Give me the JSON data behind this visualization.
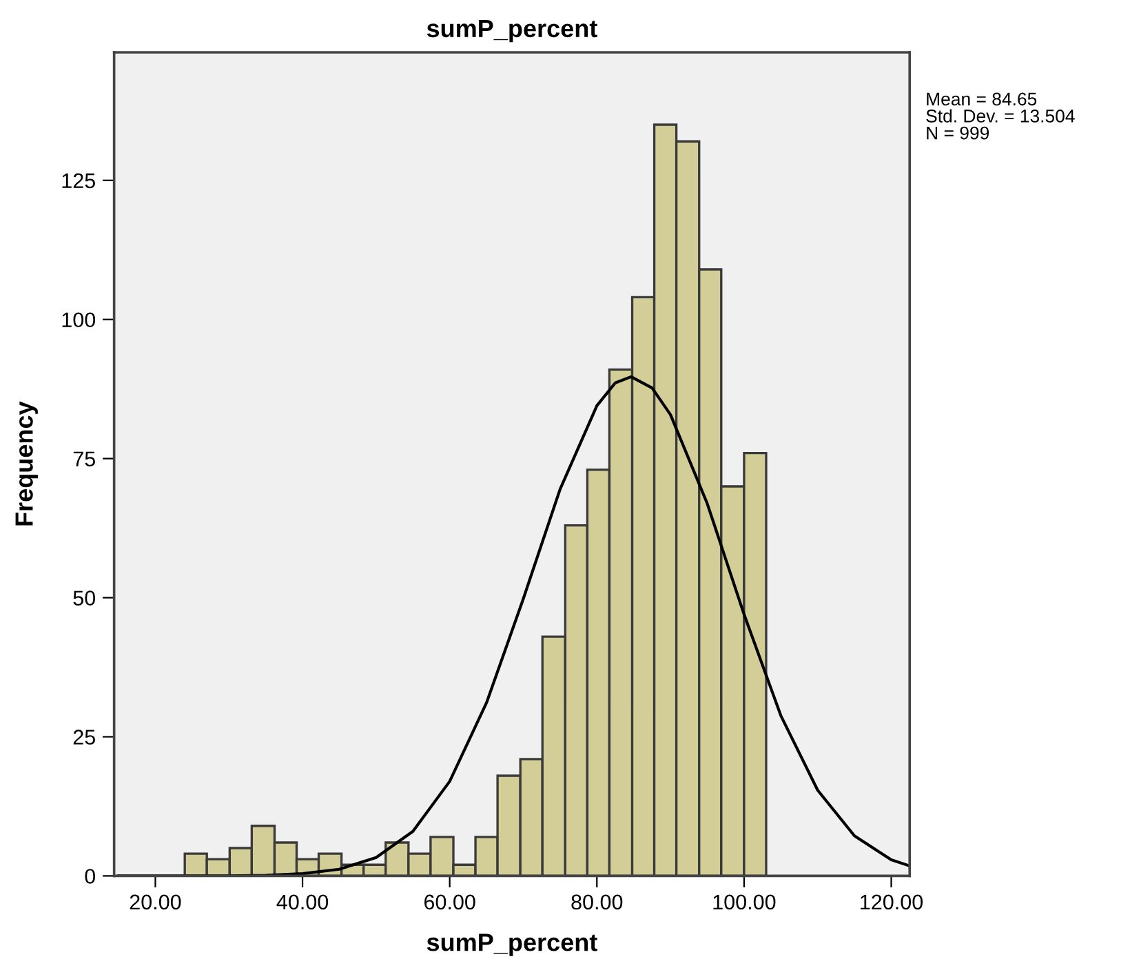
{
  "chart_data": {
    "type": "histogram",
    "title": "sumP_percent",
    "xlabel": "sumP_percent",
    "ylabel": "Frequency",
    "bins": [
      24.0,
      27.0,
      30.1,
      33.1,
      36.2,
      39.2,
      42.2,
      45.3,
      48.3,
      51.3,
      54.4,
      57.4,
      60.5,
      63.5,
      66.5,
      69.6,
      72.6,
      75.7,
      78.7,
      81.7,
      84.8,
      87.8,
      90.8,
      93.9,
      96.9,
      100.0,
      103.0
    ],
    "values": [
      4,
      3,
      5,
      9,
      6,
      3,
      4,
      2,
      2,
      6,
      4,
      7,
      2,
      7,
      18,
      21,
      43,
      63,
      73,
      91,
      104,
      135,
      132,
      109,
      70,
      76
    ],
    "color": "#d3ce97",
    "series": [
      {
        "type": "line",
        "color": "#000000",
        "x": [
          15,
          20,
          25,
          30,
          35,
          40,
          45,
          50,
          55,
          60,
          65,
          70,
          75,
          80,
          82.5,
          84.65,
          87.5,
          90,
          95,
          100,
          105,
          110,
          115,
          120,
          122.5
        ],
        "values": [
          0,
          0,
          0,
          0,
          0.1,
          0.4,
          1.2,
          3.3,
          8.0,
          17.0,
          31.1,
          49.8,
          69.5,
          84.5,
          88.6,
          89.7,
          87.7,
          82.9,
          66.9,
          47.0,
          28.8,
          15.4,
          7.2,
          2.9,
          1.8
        ]
      }
    ],
    "xlim": [
      14.4,
      122.5
    ],
    "ylim": [
      0,
      148
    ],
    "xticks": [
      {
        "value": 20,
        "label": "20.00"
      },
      {
        "value": 40,
        "label": "40.00"
      },
      {
        "value": 60,
        "label": "60.00"
      },
      {
        "value": 80,
        "label": "80.00"
      },
      {
        "value": 100,
        "label": "100.00"
      },
      {
        "value": 120,
        "label": "120.00"
      }
    ],
    "yticks": [
      0,
      25,
      50,
      75,
      100,
      125
    ],
    "grid": false,
    "annotations": [
      "Mean = 84.65",
      "Std. Dev. = 13.504",
      "N = 999"
    ]
  }
}
